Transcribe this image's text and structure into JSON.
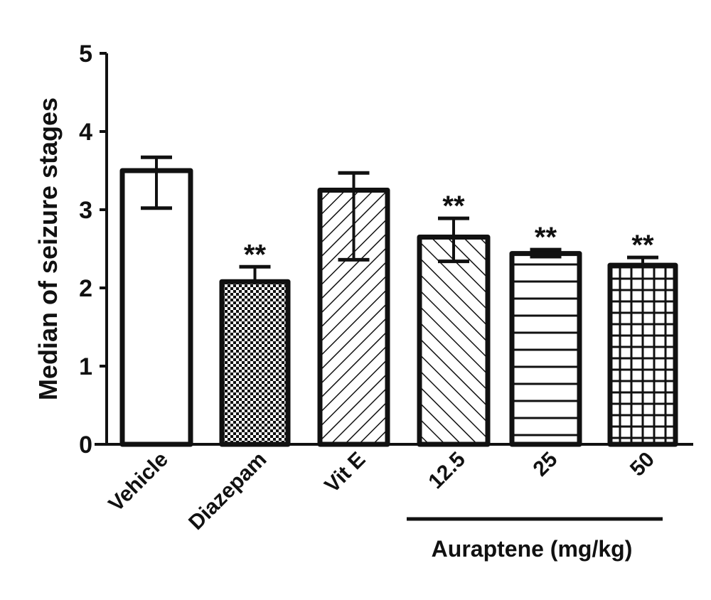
{
  "chart_data": {
    "type": "bar",
    "title": "",
    "xlabel": "",
    "ylabel": "Median of seizure stages",
    "ylim": [
      0,
      5
    ],
    "yticks": [
      0,
      1,
      2,
      3,
      4,
      5
    ],
    "grid": false,
    "categories": [
      "Vehicle",
      "Diazepam",
      "Vit E",
      "12.5",
      "25",
      "50"
    ],
    "values": [
      3.5,
      2.08,
      3.25,
      2.65,
      2.44,
      2.29
    ],
    "error_upper": [
      3.67,
      2.27,
      3.47,
      2.89,
      2.49,
      2.39
    ],
    "error_lower": [
      3.02,
      null,
      2.36,
      2.34,
      2.4,
      null
    ],
    "patterns": [
      "none",
      "checker",
      "diag-up",
      "diag-down",
      "horizontal",
      "grid"
    ],
    "annotations": [
      "",
      "**",
      "",
      "**",
      "**",
      "**"
    ],
    "group_label": {
      "text": "Auraptene (mg/kg)",
      "categories": [
        "12.5",
        "25",
        "50"
      ]
    }
  }
}
